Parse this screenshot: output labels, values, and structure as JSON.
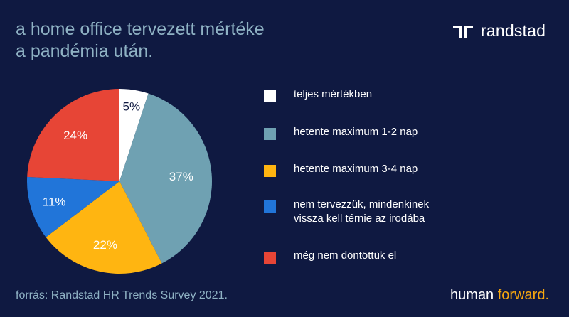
{
  "header": {
    "title_line1": "a home office tervezett mértéke",
    "title_line2": "a pandémia után."
  },
  "brand": {
    "logo_text": "randstad",
    "tagline_part1": "human ",
    "tagline_part2": "forward."
  },
  "footer": {
    "source": "forrás: Randstad HR Trends Survey 2021."
  },
  "colors": {
    "background": "#0f1941",
    "title": "#8fb2c4",
    "accent": "#f7a70f"
  },
  "chart_data": {
    "type": "pie",
    "title": "",
    "slices": [
      {
        "label": "teljes mértékben",
        "value": 5,
        "value_label": "5%",
        "color": "#ffffff",
        "label_color": "#0f1941"
      },
      {
        "label": "hetente maximum 1-2 nap",
        "value": 37,
        "value_label": "37%",
        "color": "#6fa1b2",
        "label_color": "#ffffff"
      },
      {
        "label": "hetente maximum 3-4 nap",
        "value": 22,
        "value_label": "22%",
        "color": "#ffb511",
        "label_color": "#ffffff"
      },
      {
        "label": "nem tervezzük, mindenkinek\nvissza kell térnie az irodába",
        "value": 11,
        "value_label": "11%",
        "color": "#2175d9",
        "label_color": "#ffffff"
      },
      {
        "label": "még nem döntöttük el",
        "value": 24,
        "value_label": "24%",
        "color": "#e74536",
        "label_color": "#ffffff"
      }
    ],
    "start_angle_deg": 0,
    "direction": "clockwise",
    "legend_position": "right"
  }
}
